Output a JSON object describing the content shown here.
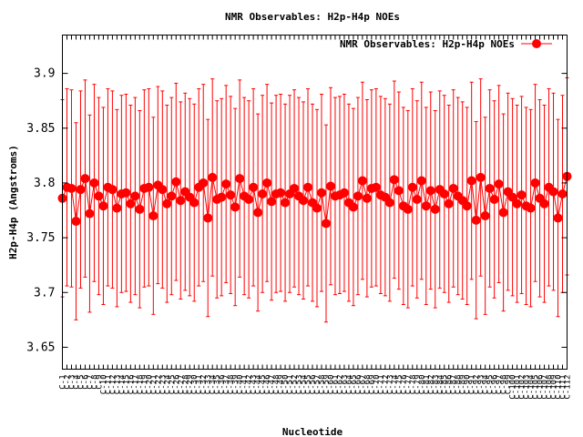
{
  "chart_data": {
    "type": "line",
    "title": "NMR Observables: H2p-H4p NOEs",
    "xlabel": "Nucleotide",
    "ylabel": "H2p-H4p (Angstroms)",
    "ylim": [
      3.63,
      3.935
    ],
    "yticks": [
      3.65,
      3.7,
      3.75,
      3.8,
      3.85,
      3.9
    ],
    "ytick_labels": [
      "3.65",
      "3.7",
      "3.75",
      "3.8",
      "3.85",
      "3.9"
    ],
    "legend": "top-right",
    "grid": false,
    "x_count": 112,
    "xtick_labels": [
      "C-1",
      "C-2",
      "C-3",
      "C-4",
      "C-5",
      "C-6",
      "C-7",
      "C-8",
      "C-9",
      "C-10",
      "C-11",
      "C-12",
      "C-13",
      "C-14",
      "C-15",
      "C-16",
      "C-17",
      "C-18",
      "C-19",
      "C-20",
      "C-21",
      "C-22",
      "C-23",
      "C-24",
      "C-25",
      "C-26",
      "C-27",
      "C-28",
      "C-29",
      "C-30",
      "C-31",
      "C-32",
      "C-33",
      "C-34",
      "C-35",
      "C-36",
      "C-37",
      "C-38",
      "C-39",
      "C-40",
      "C-41",
      "C-42",
      "C-43",
      "C-44",
      "C-45",
      "C-46",
      "C-47",
      "C-48",
      "C-49",
      "C-50",
      "C-51",
      "C-52",
      "C-53",
      "C-54",
      "C-55",
      "C-56",
      "C-57",
      "C-58",
      "C-59",
      "C-60",
      "C-61",
      "C-62",
      "C-63",
      "C-64",
      "C-65",
      "C-66",
      "C-67",
      "C-68",
      "C-69",
      "C-70",
      "C-71",
      "C-72",
      "C-73",
      "C-74",
      "C-75",
      "C-76",
      "C-77",
      "C-78",
      "C-79",
      "C-80",
      "C-81",
      "C-82",
      "C-83",
      "C-84",
      "C-85",
      "C-86",
      "C-87",
      "C-88",
      "C-89",
      "C-90",
      "C-91",
      "C-92",
      "C-93",
      "C-94",
      "C-95",
      "C-96",
      "C-97",
      "C-98",
      "C-99",
      "C-100",
      "C-101",
      "C-102",
      "C-103",
      "C-104",
      "C-105",
      "C-106",
      "C-107",
      "C-108",
      "C-109",
      "C-110",
      "C-111",
      "C-112"
    ],
    "series": [
      {
        "name": "NMR Observables: H2p-H4p NOEs",
        "color": "#ff0000",
        "values": [
          3.786,
          3.796,
          3.795,
          3.765,
          3.794,
          3.804,
          3.772,
          3.8,
          3.788,
          3.779,
          3.796,
          3.794,
          3.777,
          3.79,
          3.791,
          3.781,
          3.788,
          3.776,
          3.795,
          3.796,
          3.77,
          3.798,
          3.794,
          3.781,
          3.788,
          3.801,
          3.784,
          3.792,
          3.787,
          3.782,
          3.796,
          3.8,
          3.768,
          3.805,
          3.785,
          3.787,
          3.799,
          3.789,
          3.778,
          3.804,
          3.788,
          3.785,
          3.796,
          3.773,
          3.79,
          3.8,
          3.783,
          3.79,
          3.791,
          3.782,
          3.79,
          3.795,
          3.788,
          3.784,
          3.796,
          3.782,
          3.777,
          3.791,
          3.763,
          3.797,
          3.788,
          3.789,
          3.791,
          3.782,
          3.778,
          3.788,
          3.802,
          3.786,
          3.795,
          3.796,
          3.789,
          3.787,
          3.782,
          3.803,
          3.793,
          3.779,
          3.776,
          3.796,
          3.785,
          3.802,
          3.779,
          3.793,
          3.776,
          3.794,
          3.79,
          3.781,
          3.795,
          3.788,
          3.784,
          3.779,
          3.802,
          3.766,
          3.805,
          3.77,
          3.795,
          3.785,
          3.799,
          3.773,
          3.792,
          3.787,
          3.781,
          3.789,
          3.779,
          3.777,
          3.8,
          3.786,
          3.781,
          3.796,
          3.792,
          3.768,
          3.79,
          3.806
        ]
      }
    ],
    "error_halfwidth": 0.09
  }
}
